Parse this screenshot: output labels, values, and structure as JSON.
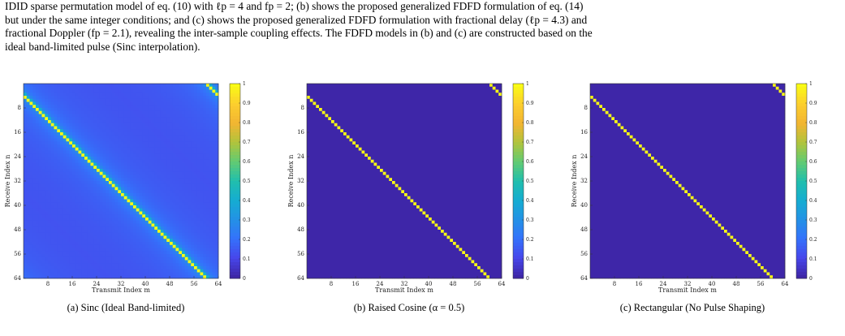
{
  "caption": {
    "lines": [
      "IDID sparse permutation model of eq. (10) with ℓp = 4 and fp = 2; (b) shows the proposed generalized FDFD formulation of eq. (14)",
      "but under the same integer conditions; and (c) shows the proposed generalized FDFD formulation with fractional delay (ℓp = 4.3) and",
      "fractional Doppler (fp = 2.1), revealing the inter-sample coupling effects. The FDFD models in (b) and (c) are constructed based on the",
      "ideal band-limited pulse (Sinc interpolation)."
    ]
  },
  "chart_data": [
    {
      "type": "heatmap",
      "subcaption": "(a) Sinc (Ideal Band-limited)",
      "xlabel": "Transmit Index m",
      "ylabel": "Receive Index n",
      "xticks": [
        8,
        16,
        24,
        32,
        40,
        48,
        56,
        64
      ],
      "yticks": [
        8,
        16,
        24,
        32,
        40,
        48,
        56,
        64
      ],
      "n": 64,
      "shift": 4,
      "pulse": "sinc",
      "clim": [
        0,
        1
      ],
      "colorbar_ticks": [
        "1",
        "0.9",
        "0.8",
        "0.7",
        "0.6",
        "0.5",
        "0.4",
        "0.3",
        "0.2",
        "0.1",
        "0"
      ],
      "colormap": "parula"
    },
    {
      "type": "heatmap",
      "subcaption": "(b) Raised Cosine (α = 0.5)",
      "xlabel": "Transmit Index m",
      "ylabel": "Receive Index n",
      "xticks": [
        8,
        16,
        24,
        32,
        40,
        48,
        56,
        64
      ],
      "yticks": [
        8,
        16,
        24,
        32,
        40,
        48,
        56,
        64
      ],
      "n": 64,
      "shift": 4,
      "pulse": "raised-cosine",
      "clim": [
        0,
        1
      ],
      "colorbar_ticks": [
        "1",
        "0.9",
        "0.8",
        "0.7",
        "0.6",
        "0.5",
        "0.4",
        "0.3",
        "0.2",
        "0.1",
        "0"
      ],
      "colormap": "parula"
    },
    {
      "type": "heatmap",
      "subcaption": "(c) Rectangular (No Pulse Shaping)",
      "xlabel": "Transmit Index m",
      "ylabel": "Receive Index n",
      "xticks": [
        8,
        16,
        24,
        32,
        40,
        48,
        56,
        64
      ],
      "yticks": [
        8,
        16,
        24,
        32,
        40,
        48,
        56,
        64
      ],
      "n": 64,
      "shift": 4,
      "pulse": "rectangular",
      "clim": [
        0,
        1
      ],
      "colorbar_ticks": [
        "1",
        "0.9",
        "0.8",
        "0.7",
        "0.6",
        "0.5",
        "0.4",
        "0.3",
        "0.2",
        "0.1",
        "0"
      ],
      "colormap": "parula"
    }
  ]
}
